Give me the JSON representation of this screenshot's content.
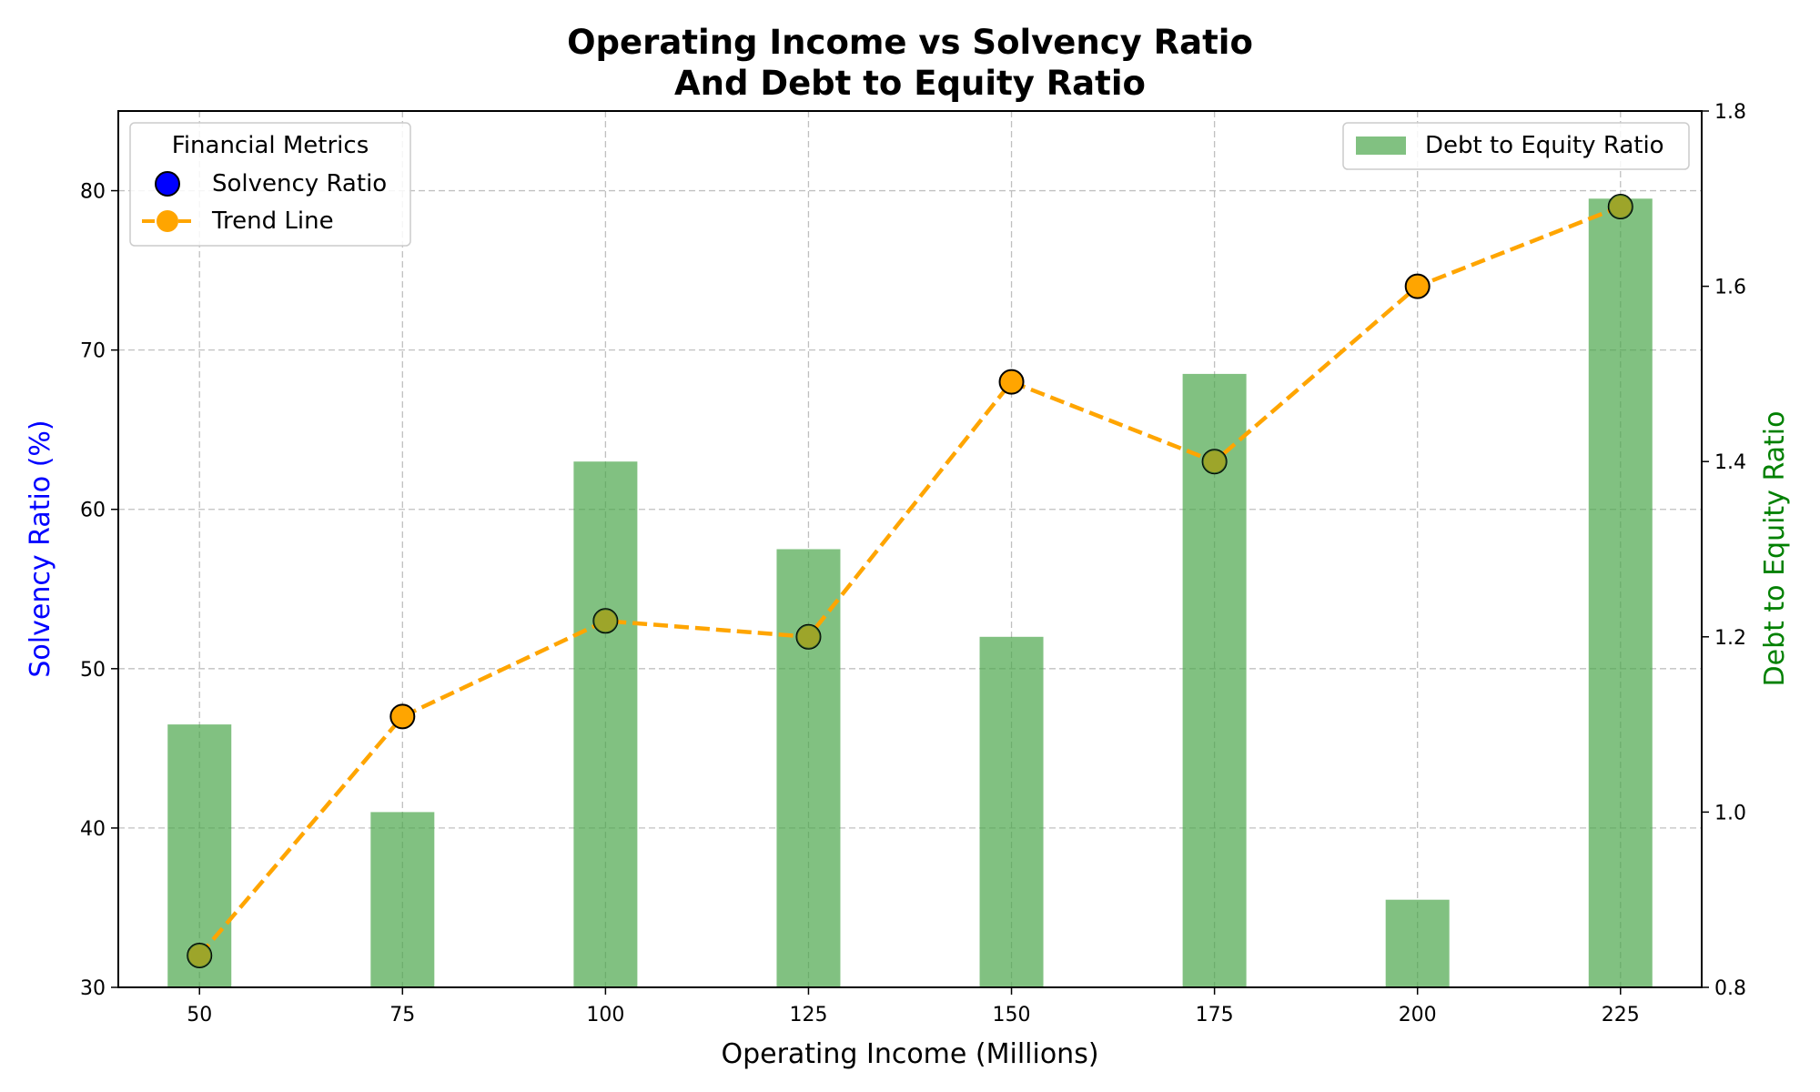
{
  "chart_data": {
    "type": "bar+line",
    "title": "Operating Income vs Solvency Ratio",
    "subtitle": "And Debt to Equity Ratio",
    "xlabel": "Operating Income (Millions)",
    "ylabel_left": "Solvency Ratio (%)",
    "ylabel_right": "Debt to Equity Ratio",
    "x": [
      50,
      75,
      100,
      125,
      150,
      175,
      200,
      225
    ],
    "xlim": [
      40,
      235
    ],
    "ylim_left": [
      30,
      85
    ],
    "ylim_right": [
      0.8,
      1.8
    ],
    "yticks_left": [
      30,
      40,
      50,
      60,
      70,
      80
    ],
    "yticks_right": [
      0.8,
      1.0,
      1.2,
      1.4,
      1.6,
      1.8
    ],
    "grid": true,
    "series": [
      {
        "name": "Debt to Equity Ratio",
        "kind": "bar",
        "axis": "right",
        "color": "#4ca64c",
        "values": [
          1.1,
          1.0,
          1.4,
          1.3,
          1.2,
          1.5,
          0.9,
          1.7
        ]
      },
      {
        "name": "Solvency Ratio",
        "kind": "scatter",
        "axis": "left",
        "color": "#ffa500",
        "legend_color": "#0000ff",
        "values": [
          32,
          47,
          53,
          52,
          68,
          63,
          74,
          79
        ]
      },
      {
        "name": "Trend Line",
        "kind": "line",
        "axis": "left",
        "color": "#ffa500",
        "style": "dashed",
        "values": [
          32,
          47,
          53,
          52,
          68,
          63,
          74,
          79
        ]
      }
    ],
    "legend_left": {
      "title": "Financial Metrics",
      "entries": [
        "Solvency Ratio",
        "Trend Line"
      ],
      "placement": "top-left"
    },
    "legend_right": {
      "entries": [
        "Debt to Equity Ratio"
      ],
      "placement": "top-right"
    },
    "colors": {
      "ylabel_left": "#0000ff",
      "ylabel_right": "#008000",
      "grid": "#b0b0b0"
    }
  }
}
